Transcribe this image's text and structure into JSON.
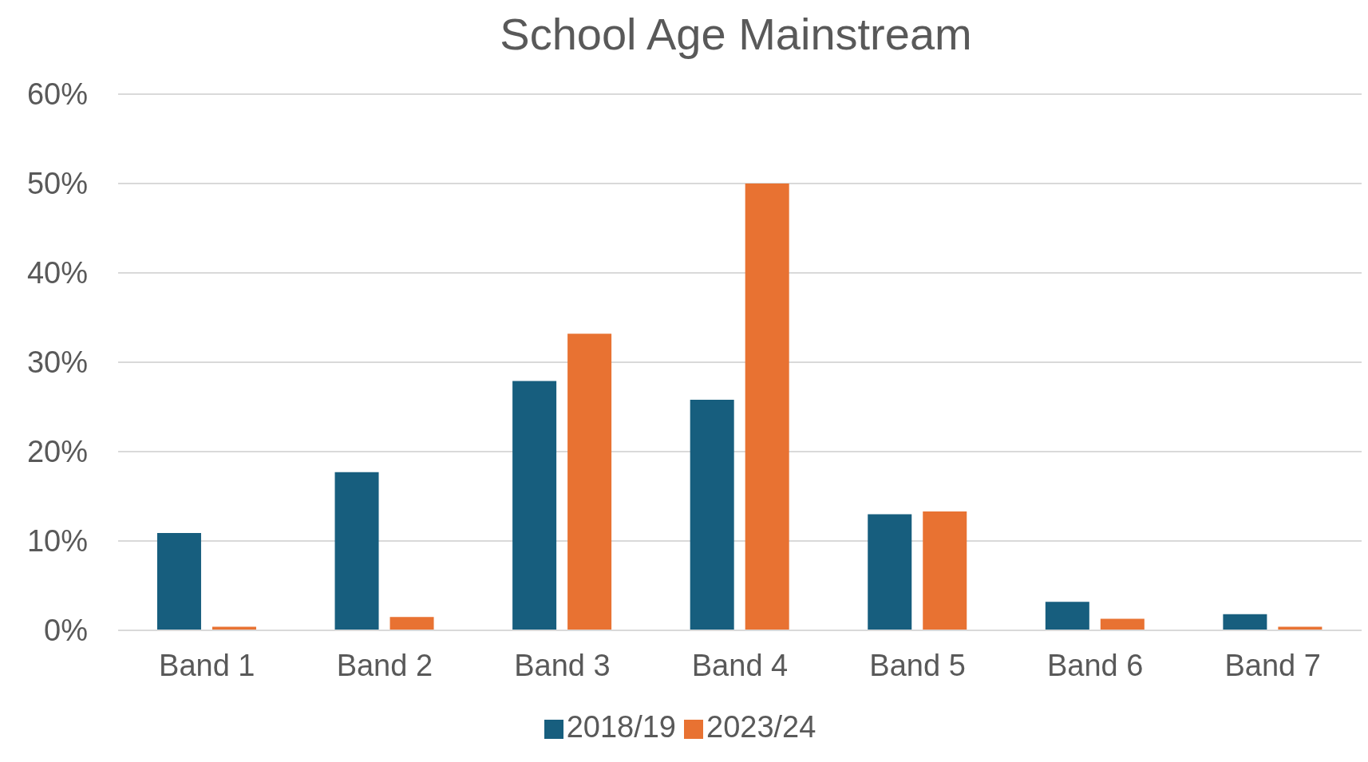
{
  "chart_data": {
    "type": "bar",
    "title": "School Age Mainstream",
    "categories": [
      "Band 1",
      "Band 2",
      "Band 3",
      "Band 4",
      "Band 5",
      "Band 6",
      "Band 7"
    ],
    "series": [
      {
        "name": "2018/19",
        "color": "#175e7e",
        "values": [
          10.9,
          17.7,
          27.9,
          25.8,
          13.0,
          3.2,
          1.8
        ]
      },
      {
        "name": "2023/24",
        "color": "#e87232",
        "values": [
          0.4,
          1.5,
          33.2,
          50.0,
          13.3,
          1.3,
          0.4
        ]
      }
    ],
    "ylim": [
      0,
      60
    ],
    "yticks": [
      {
        "value": 0,
        "label": "0%"
      },
      {
        "value": 10,
        "label": "10%"
      },
      {
        "value": 20,
        "label": "20%"
      },
      {
        "value": 30,
        "label": "30%"
      },
      {
        "value": 40,
        "label": "40%"
      },
      {
        "value": 50,
        "label": "50%"
      },
      {
        "value": 60,
        "label": "60%"
      }
    ],
    "grid": "y",
    "legend": "bottom"
  }
}
